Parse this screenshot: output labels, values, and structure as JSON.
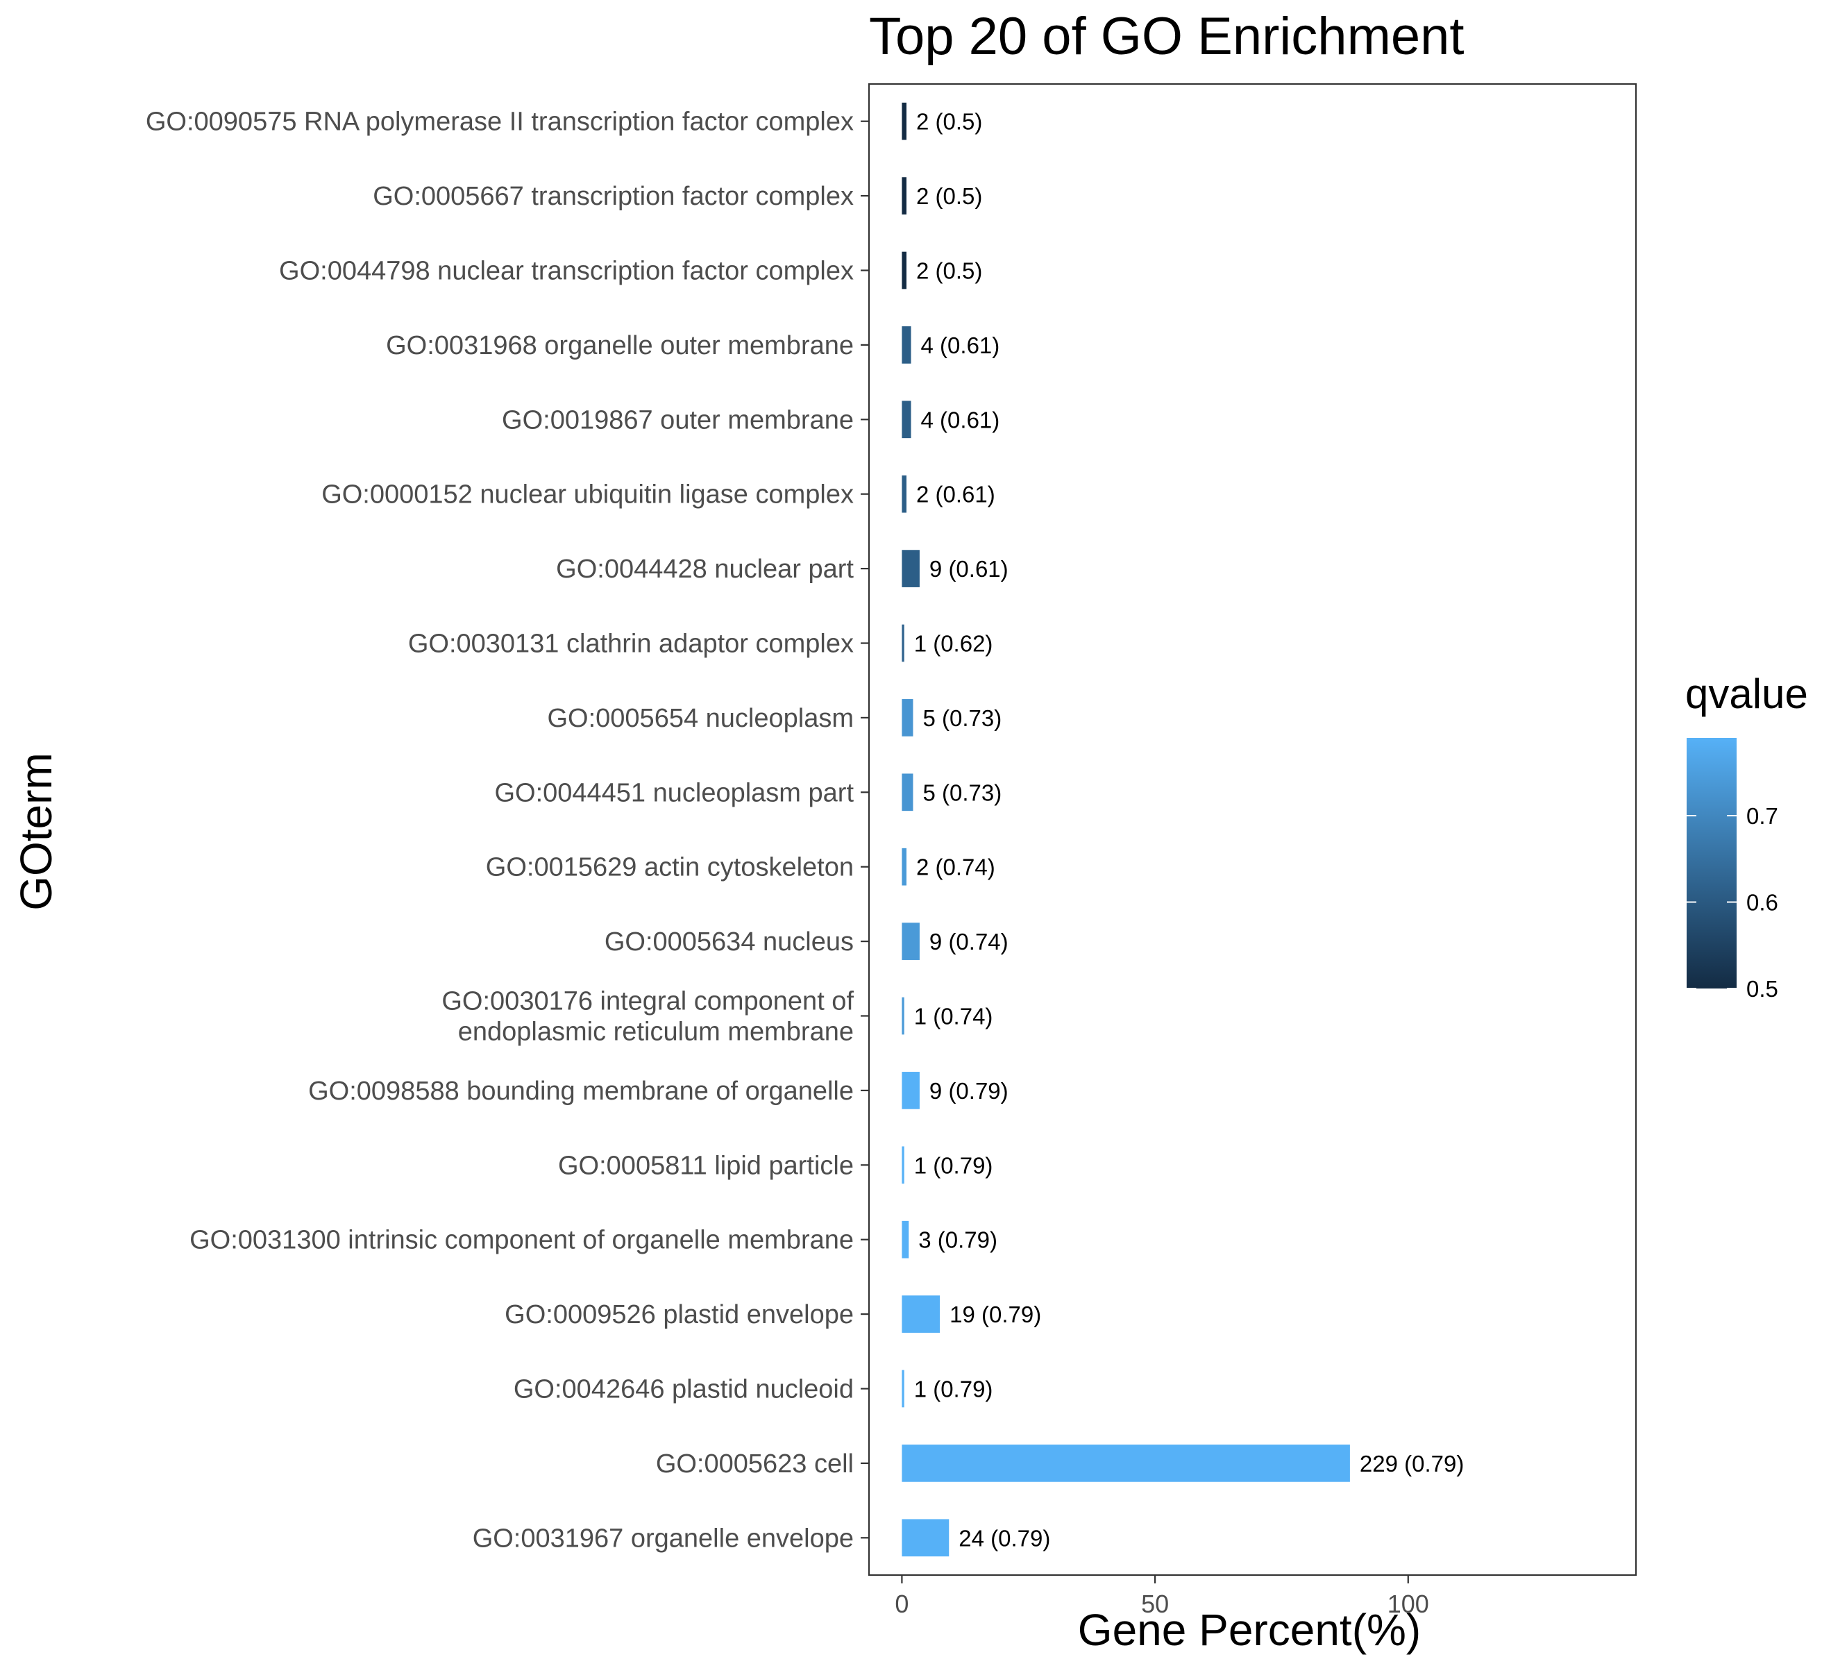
{
  "chart_data": {
    "type": "bar",
    "orientation": "horizontal",
    "title": "Top 20 of GO Enrichment",
    "xlabel": "Gene Percent(%)",
    "ylabel": "GOterm",
    "xlim": [
      -6.5,
      145
    ],
    "xticks": [
      0,
      50,
      100
    ],
    "grid": false,
    "legend": {
      "title": "qvalue",
      "placement": "right",
      "range": [
        0.5,
        0.79
      ],
      "ticks": [
        0.5,
        0.6,
        0.7
      ],
      "color_low": "#132B43",
      "color_high": "#56B1F7"
    },
    "categories": [
      [
        "GO:0090575 RNA polymerase II transcription factor complex"
      ],
      [
        "GO:0005667 transcription factor complex"
      ],
      [
        "GO:0044798 nuclear transcription factor complex"
      ],
      [
        "GO:0031968 organelle outer membrane"
      ],
      [
        "GO:0019867 outer membrane"
      ],
      [
        "GO:0000152 nuclear ubiquitin ligase complex"
      ],
      [
        "GO:0044428 nuclear part"
      ],
      [
        "GO:0030131 clathrin adaptor complex"
      ],
      [
        "GO:0005654 nucleoplasm"
      ],
      [
        "GO:0044451 nucleoplasm part"
      ],
      [
        "GO:0015629 actin cytoskeleton"
      ],
      [
        "GO:0005634 nucleus"
      ],
      [
        "GO:0030176 integral component of",
        "endoplasmic reticulum membrane"
      ],
      [
        "GO:0098588 bounding membrane of organelle"
      ],
      [
        "GO:0005811 lipid particle"
      ],
      [
        "GO:0031300 intrinsic component of organelle membrane"
      ],
      [
        "GO:0009526 plastid envelope"
      ],
      [
        "GO:0042646 plastid nucleoid"
      ],
      [
        "GO:0005623 cell"
      ],
      [
        "GO:0031967 organelle envelope"
      ]
    ],
    "values": [
      0.9,
      0.9,
      0.9,
      1.8,
      1.8,
      0.9,
      3.5,
      0.45,
      2.2,
      2.2,
      0.9,
      3.5,
      0.45,
      3.5,
      0.45,
      1.35,
      7.5,
      0.45,
      88.5,
      9.3
    ],
    "qvalues": [
      0.5,
      0.5,
      0.5,
      0.61,
      0.61,
      0.61,
      0.61,
      0.62,
      0.73,
      0.73,
      0.74,
      0.74,
      0.74,
      0.79,
      0.79,
      0.79,
      0.79,
      0.79,
      0.79,
      0.79
    ],
    "bar_labels": [
      "2 (0.5)",
      "2 (0.5)",
      "2 (0.5)",
      "4 (0.61)",
      "4 (0.61)",
      "2 (0.61)",
      "9 (0.61)",
      "1 (0.62)",
      "5 (0.73)",
      "5 (0.73)",
      "2 (0.74)",
      "9 (0.74)",
      "1 (0.74)",
      "9 (0.79)",
      "1 (0.79)",
      "3 (0.79)",
      "19 (0.79)",
      "1 (0.79)",
      "229 (0.79)",
      "24 (0.79)"
    ]
  }
}
